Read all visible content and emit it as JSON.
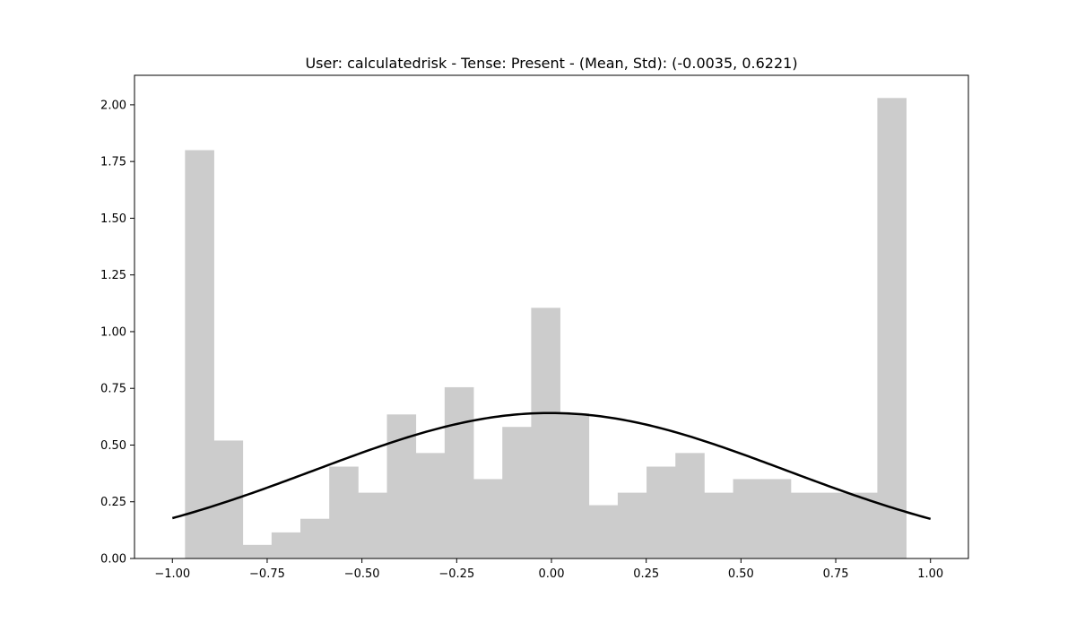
{
  "chart_data": {
    "type": "bar",
    "title": "User: calculatedrisk - Tense: Present - (Mean, Std): (-0.0035, 0.6221)",
    "xlabel": "",
    "ylabel": "",
    "xlim": [
      -1.1,
      1.1
    ],
    "ylim": [
      0.0,
      2.13
    ],
    "grid": false,
    "xticks": [
      -1.0,
      -0.75,
      -0.5,
      -0.25,
      0.0,
      0.25,
      0.5,
      0.75,
      1.0
    ],
    "xtick_labels": [
      "−1.00",
      "−0.75",
      "−0.50",
      "−0.25",
      "0.00",
      "0.25",
      "0.50",
      "0.75",
      "1.00"
    ],
    "yticks": [
      0.0,
      0.25,
      0.5,
      0.75,
      1.0,
      1.25,
      1.5,
      1.75,
      2.0
    ],
    "ytick_labels": [
      "0.00",
      "0.25",
      "0.50",
      "0.75",
      "1.00",
      "1.25",
      "1.50",
      "1.75",
      "2.00"
    ],
    "bin_edges": [
      -0.9667,
      -0.8906,
      -0.8145,
      -0.7384,
      -0.6623,
      -0.5862,
      -0.5101,
      -0.434,
      -0.3579,
      -0.2818,
      -0.2057,
      -0.1296,
      -0.0535,
      0.0226,
      0.0987,
      0.1748,
      0.2509,
      0.327,
      0.4031,
      0.4792,
      0.5553,
      0.6314,
      0.7075,
      0.7836,
      0.8597,
      0.9358
    ],
    "values": [
      1.8,
      0.52,
      0.06,
      0.115,
      0.175,
      0.405,
      0.29,
      0.635,
      0.465,
      0.755,
      0.35,
      0.58,
      1.105,
      0.64,
      0.235,
      0.29,
      0.405,
      0.465,
      0.29,
      0.35,
      0.35,
      0.29,
      0.29,
      0.29,
      2.03
    ],
    "bar_color": "#cccccc",
    "curve": {
      "kind": "normal_pdf",
      "mean": -0.0035,
      "std": 0.6221,
      "x_range": [
        -1.0,
        1.0
      ],
      "color": "#000000"
    }
  }
}
